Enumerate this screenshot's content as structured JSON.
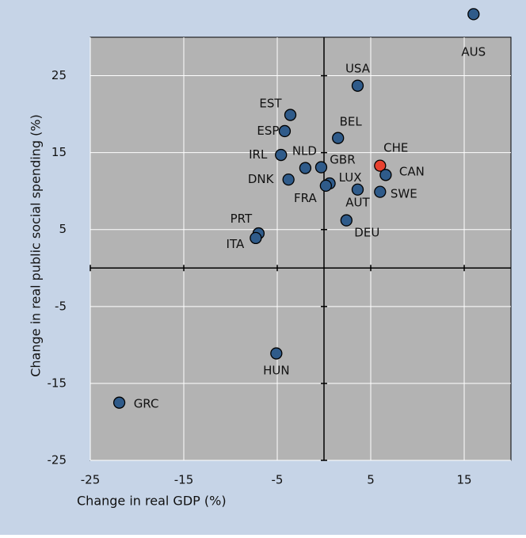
{
  "chart_data": {
    "type": "scatter",
    "xlabel": "Change in real GDP (%)",
    "ylabel": "Change in real public social spending (%)",
    "labels": [
      "AUS",
      "USA",
      "EST",
      "ESP",
      "BEL",
      "IRL",
      "NLD",
      "GBR",
      "CHE",
      "CAN",
      "DNK",
      "LUX",
      "FRA",
      "AUT",
      "SWE",
      "DEU",
      "PRT",
      "ITA",
      "HUN",
      "GRC"
    ],
    "x": [
      16.0,
      3.6,
      -3.6,
      -4.2,
      1.5,
      -4.6,
      -2.0,
      -0.3,
      6.0,
      6.6,
      -3.8,
      0.6,
      0.2,
      3.6,
      6.0,
      2.4,
      -7.0,
      -7.3,
      -5.1,
      -21.9
    ],
    "y": [
      33.0,
      23.7,
      19.9,
      17.8,
      16.9,
      14.7,
      13.0,
      13.1,
      13.3,
      12.1,
      11.5,
      11.0,
      10.7,
      10.2,
      9.9,
      6.2,
      4.5,
      3.9,
      -11.1,
      -17.5
    ],
    "colors": [
      "#2f5b8a",
      "#2f5b8a",
      "#2f5b8a",
      "#2f5b8a",
      "#2f5b8a",
      "#2f5b8a",
      "#2f5b8a",
      "#2f5b8a",
      "#e8412f",
      "#2f5b8a",
      "#2f5b8a",
      "#2f5b8a",
      "#2f5b8a",
      "#2f5b8a",
      "#2f5b8a",
      "#2f5b8a",
      "#2f5b8a",
      "#2f5b8a",
      "#2f5b8a",
      "#2f5b8a"
    ],
    "xlim": [
      -25,
      20
    ],
    "ylim": [
      -25,
      30
    ],
    "xticks": [
      -25,
      -15,
      -5,
      5,
      15
    ],
    "yticks": [
      -25,
      -15,
      -5,
      5,
      15,
      25
    ],
    "grid": true
  }
}
